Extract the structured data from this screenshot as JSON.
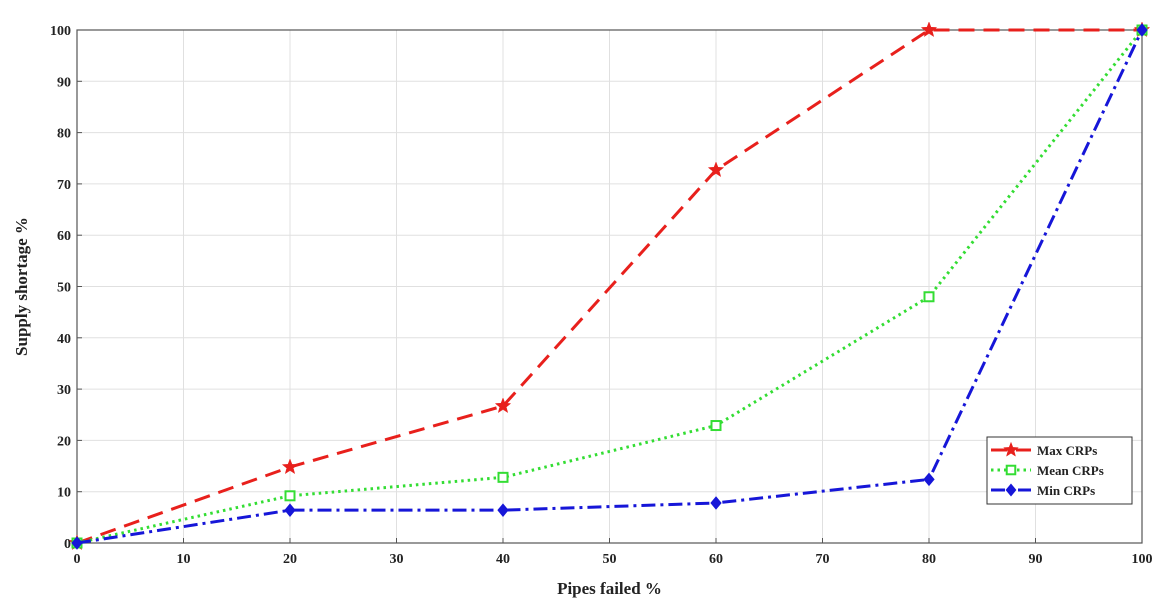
{
  "chart_data": {
    "type": "line",
    "title": "",
    "xlabel": "Pipes failed %",
    "ylabel": "Supply shortage  %",
    "xlim": [
      0,
      100
    ],
    "ylim": [
      0,
      100
    ],
    "xticks": [
      0,
      10,
      20,
      30,
      40,
      50,
      60,
      70,
      80,
      90,
      100
    ],
    "yticks": [
      0,
      10,
      20,
      30,
      40,
      50,
      60,
      70,
      80,
      90,
      100
    ],
    "grid": true,
    "legend_position": "bottom-right",
    "x": [
      0,
      20,
      40,
      60,
      80,
      100
    ],
    "series": [
      {
        "name": "Max CRPs",
        "values": [
          0,
          14.8,
          26.7,
          72.7,
          100,
          100
        ],
        "color": "#e8201c",
        "line_style": "dashed",
        "marker": "star"
      },
      {
        "name": "Mean CRPs",
        "values": [
          0,
          9.2,
          12.8,
          22.9,
          48.0,
          100
        ],
        "color": "#33dd33",
        "line_style": "dotted",
        "marker": "square"
      },
      {
        "name": "Min CRPs",
        "values": [
          0,
          6.4,
          6.4,
          7.8,
          12.4,
          100
        ],
        "color": "#1616d8",
        "line_style": "dash-dot",
        "marker": "diamond"
      }
    ]
  }
}
